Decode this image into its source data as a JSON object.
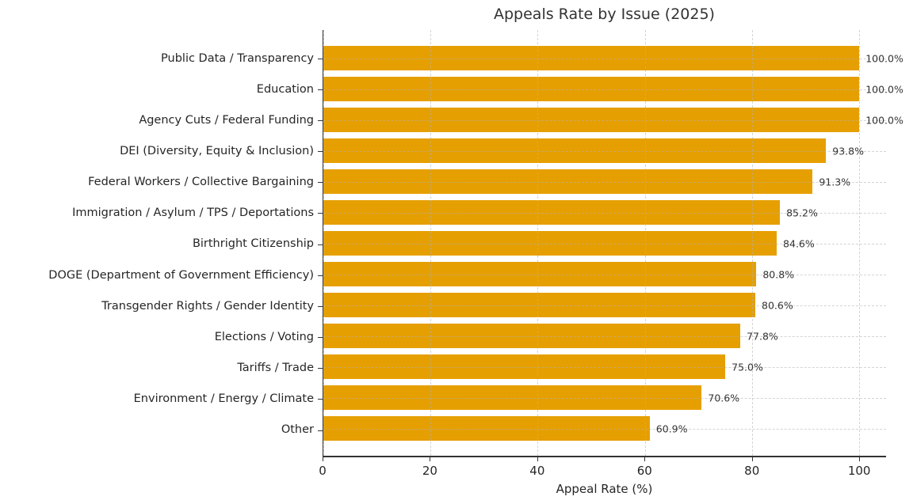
{
  "chart_data": {
    "type": "bar",
    "orientation": "horizontal",
    "title": "Appeals Rate by Issue (2025)",
    "xlabel": "Appeal Rate (%)",
    "ylabel": "",
    "xlim": [
      0,
      105
    ],
    "xticks": [
      0,
      20,
      40,
      60,
      80,
      100
    ],
    "grid": "dashed, both axes, drawn above bars",
    "legend": "none",
    "categories": [
      "Public Data / Transparency",
      "Education",
      "Agency Cuts / Federal Funding",
      "DEI (Diversity, Equity & Inclusion)",
      "Federal Workers / Collective Bargaining",
      "Immigration / Asylum / TPS / Deportations",
      "Birthright Citizenship",
      "DOGE (Department of Government Efficiency)",
      "Transgender Rights / Gender Identity",
      "Elections / Voting",
      "Tariffs / Trade",
      "Environment / Energy / Climate",
      "Other"
    ],
    "values": [
      100.0,
      100.0,
      100.0,
      93.8,
      91.3,
      85.2,
      84.6,
      80.8,
      80.6,
      77.8,
      75.0,
      70.6,
      60.9
    ],
    "value_labels": [
      "100.0%",
      "100.0%",
      "100.0%",
      "93.8%",
      "91.3%",
      "85.2%",
      "84.6%",
      "80.8%",
      "80.6%",
      "77.8%",
      "75.0%",
      "70.6%",
      "60.9%"
    ]
  },
  "colors": {
    "bar": "#E69F00",
    "text": "#262626",
    "title": "#333333",
    "grid": "#b0b0b0",
    "spine": "#333333",
    "background": "#ffffff"
  }
}
